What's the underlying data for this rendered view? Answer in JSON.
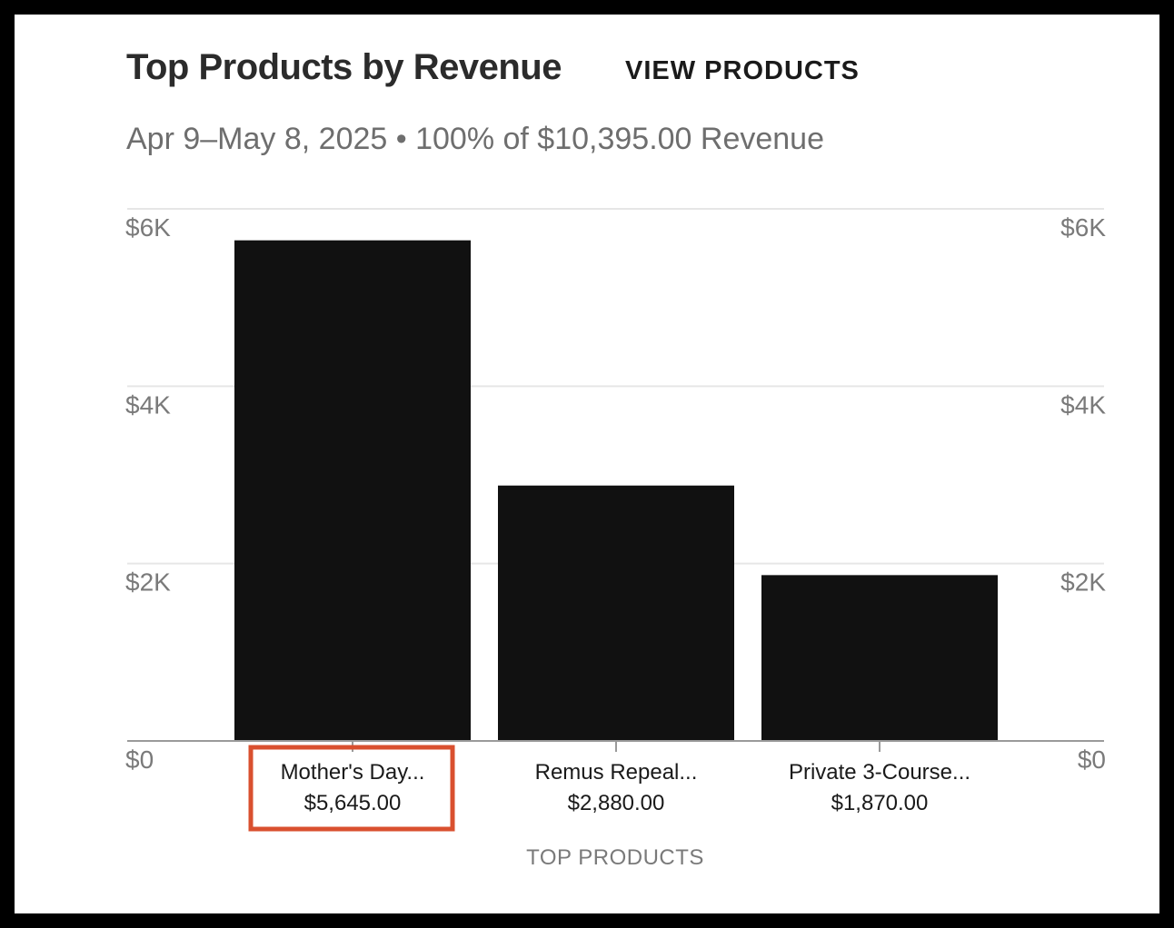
{
  "card": {
    "title": "Top Products by Revenue",
    "view_link": "VIEW PRODUCTS",
    "subtitle": "Apr 9–May 8, 2025 • 100% of $10,395.00 Revenue"
  },
  "colors": {
    "bar": "#111111",
    "grid": "#e6e6e6",
    "axis": "#9a9a9a",
    "highlight": "#d9502f"
  },
  "chart_data": {
    "type": "bar",
    "title": "Top Products by Revenue",
    "categories": [
      "Mother's Day...",
      "Remus Repeal...",
      "Private 3-Course..."
    ],
    "value_labels": [
      "$5,645.00",
      "$2,880.00",
      "$1,870.00"
    ],
    "values": [
      5645,
      2880,
      1870
    ],
    "xlabel": "TOP PRODUCTS",
    "ylabel": "",
    "ylim": [
      0,
      6000
    ],
    "yticks": [
      0,
      2000,
      4000,
      6000
    ],
    "ytick_labels": [
      "$0",
      "$2K",
      "$4K",
      "$6K"
    ],
    "grid": true,
    "dual_y_axis_labels": true,
    "highlighted_category_index": 0
  }
}
